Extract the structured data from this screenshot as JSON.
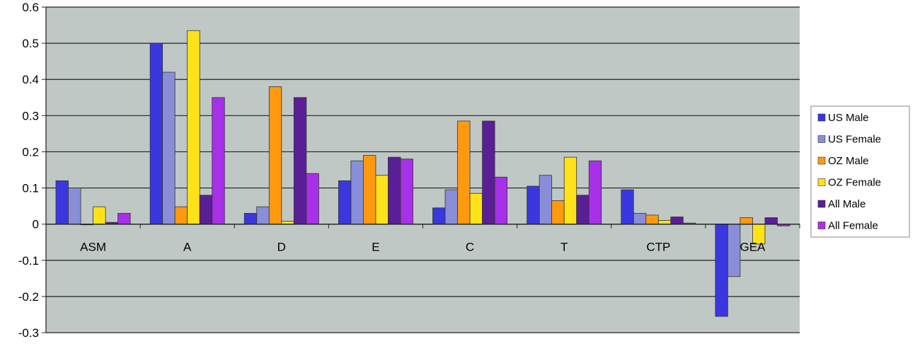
{
  "chart_data": {
    "type": "bar",
    "title": "",
    "xlabel": "",
    "ylabel": "",
    "ylim": [
      -0.3,
      0.6
    ],
    "yticks": [
      "0.6",
      "0.5",
      "0.4",
      "0.3",
      "0.2",
      "0.1",
      "0",
      "-0.1",
      "-0.2",
      "-0.3"
    ],
    "ytick_values": [
      0.6,
      0.5,
      0.4,
      0.3,
      0.2,
      0.1,
      0,
      -0.1,
      -0.2,
      -0.3
    ],
    "grid": true,
    "legend_position": "right",
    "plot_background": "#bfc8c4",
    "categories": [
      "ASM",
      "A",
      "D",
      "E",
      "C",
      "T",
      "CTP",
      "GEA"
    ],
    "series": [
      {
        "name": "US Male",
        "color": "#3a37e0",
        "values": [
          0.12,
          0.5,
          0.03,
          0.12,
          0.045,
          0.105,
          0.095,
          -0.255
        ]
      },
      {
        "name": "US Female",
        "color": "#8a8ed8",
        "values": [
          0.1,
          0.42,
          0.048,
          0.175,
          0.095,
          0.135,
          0.03,
          -0.145
        ]
      },
      {
        "name": "OZ Male",
        "color": "#ff9a10",
        "values": [
          0.0,
          0.048,
          0.38,
          0.19,
          0.285,
          0.065,
          0.025,
          0.018
        ]
      },
      {
        "name": "OZ Female",
        "color": "#ffe21a",
        "values": [
          0.048,
          0.535,
          0.008,
          0.135,
          0.085,
          0.185,
          0.01,
          -0.055
        ]
      },
      {
        "name": "All Male",
        "color": "#5a1f96",
        "values": [
          0.005,
          0.08,
          0.35,
          0.185,
          0.285,
          0.08,
          0.02,
          0.018
        ]
      },
      {
        "name": "All Female",
        "color": "#a830e8",
        "values": [
          0.03,
          0.35,
          0.14,
          0.18,
          0.13,
          0.175,
          0.003,
          -0.005
        ]
      }
    ]
  }
}
